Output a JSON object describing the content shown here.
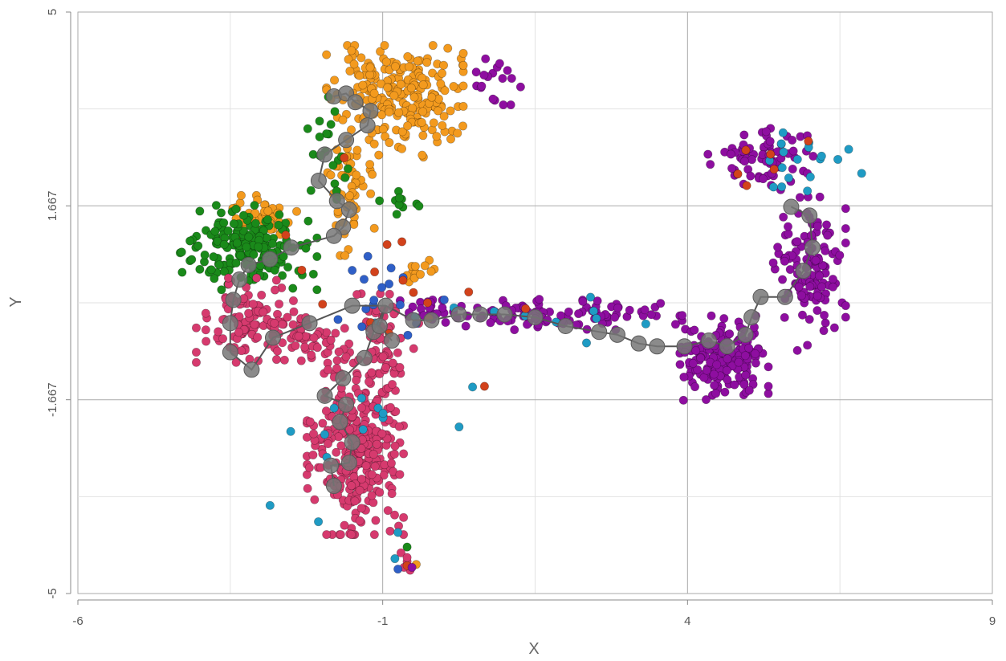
{
  "chart_data": {
    "type": "scatter",
    "title": "",
    "xlabel": "X",
    "ylabel": "Y",
    "xlim": [
      -6,
      9
    ],
    "ylim": [
      -5,
      5
    ],
    "x_ticks": [
      {
        "value": -6,
        "label": "-6"
      },
      {
        "value": -1,
        "label": "-1"
      },
      {
        "value": 4,
        "label": "4"
      },
      {
        "value": 9,
        "label": "9"
      }
    ],
    "y_ticks": [
      {
        "value": 5,
        "label": "5"
      },
      {
        "value": 1.667,
        "label": "1.667"
      },
      {
        "value": -1.667,
        "label": "-1.667"
      },
      {
        "value": -5,
        "label": "-5"
      }
    ],
    "grid": true,
    "legend": "none",
    "colors": {
      "orange": "#f39a1e",
      "green": "#1a8a1a",
      "pink": "#d63a6e",
      "purple": "#8e0ea0",
      "cyan": "#1f9bc4",
      "blue": "#2f5fc7",
      "red": "#d2421b",
      "trajectory": "#555555",
      "node": "#777777"
    },
    "clusters": [
      {
        "color": "orange",
        "cx": -0.8,
        "cy": 3.7,
        "rx": 0.85,
        "ry": 0.55,
        "n": 170,
        "seed": 11
      },
      {
        "color": "orange",
        "cx": -0.5,
        "cy": 3.1,
        "rx": 0.55,
        "ry": 0.45,
        "n": 50,
        "seed": 12
      },
      {
        "color": "orange",
        "cx": -1.6,
        "cy": 2.0,
        "rx": 0.35,
        "ry": 0.9,
        "n": 55,
        "seed": 13
      },
      {
        "color": "orange",
        "cx": -3.0,
        "cy": 1.45,
        "rx": 0.45,
        "ry": 0.3,
        "n": 45,
        "seed": 14
      },
      {
        "color": "orange",
        "cx": -0.4,
        "cy": 0.55,
        "rx": 0.2,
        "ry": 0.25,
        "n": 12,
        "seed": 15
      },
      {
        "color": "green",
        "cx": -3.2,
        "cy": 0.95,
        "rx": 0.85,
        "ry": 0.55,
        "n": 190,
        "seed": 21
      },
      {
        "color": "green",
        "cx": -1.9,
        "cy": 2.7,
        "rx": 0.25,
        "ry": 0.7,
        "n": 22,
        "seed": 22
      },
      {
        "color": "green",
        "cx": -0.8,
        "cy": 1.75,
        "rx": 0.3,
        "ry": 0.25,
        "n": 10,
        "seed": 23
      },
      {
        "color": "pink",
        "cx": -3.2,
        "cy": -0.3,
        "rx": 0.65,
        "ry": 0.55,
        "n": 110,
        "seed": 31
      },
      {
        "color": "pink",
        "cx": -1.45,
        "cy": -2.6,
        "rx": 0.6,
        "ry": 1.05,
        "n": 300,
        "seed": 32
      },
      {
        "color": "pink",
        "cx": -1.2,
        "cy": -0.9,
        "rx": 0.6,
        "ry": 0.8,
        "n": 90,
        "seed": 33
      },
      {
        "color": "pink",
        "cx": -2.3,
        "cy": -0.6,
        "rx": 0.5,
        "ry": 0.4,
        "n": 40,
        "seed": 34
      },
      {
        "color": "purple",
        "cx": 4.6,
        "cy": -0.95,
        "rx": 0.55,
        "ry": 0.55,
        "n": 190,
        "seed": 41
      },
      {
        "color": "purple",
        "cx": 1.8,
        "cy": -0.2,
        "rx": 1.6,
        "ry": 0.2,
        "n": 95,
        "seed": 42
      },
      {
        "color": "purple",
        "cx": 6.0,
        "cy": 0.5,
        "rx": 0.45,
        "ry": 1.0,
        "n": 130,
        "seed": 43
      },
      {
        "color": "purple",
        "cx": 5.2,
        "cy": 2.5,
        "rx": 0.75,
        "ry": 0.45,
        "n": 70,
        "seed": 44
      },
      {
        "color": "purple",
        "cx": 0.8,
        "cy": 3.8,
        "rx": 0.35,
        "ry": 0.3,
        "n": 18,
        "seed": 45
      },
      {
        "color": "purple",
        "cx": -0.2,
        "cy": -0.1,
        "rx": 0.4,
        "ry": 0.2,
        "n": 22,
        "seed": 46
      },
      {
        "color": "cyan",
        "cx": 5.8,
        "cy": 2.3,
        "rx": 0.8,
        "ry": 0.5,
        "n": 18,
        "seed": 51
      },
      {
        "color": "cyan",
        "cx": -1.0,
        "cy": -2.0,
        "rx": 1.4,
        "ry": 1.5,
        "n": 14,
        "seed": 52
      },
      {
        "color": "cyan",
        "cx": 1.5,
        "cy": -0.3,
        "rx": 1.5,
        "ry": 0.3,
        "n": 10,
        "seed": 53
      },
      {
        "color": "blue",
        "cx": -1.0,
        "cy": 0.0,
        "rx": 0.9,
        "ry": 1.0,
        "n": 16,
        "seed": 61
      },
      {
        "color": "red",
        "cx": -0.9,
        "cy": 0.7,
        "rx": 1.7,
        "ry": 2.0,
        "n": 16,
        "seed": 71
      },
      {
        "color": "red",
        "cx": 5.5,
        "cy": 2.5,
        "rx": 0.8,
        "ry": 0.4,
        "n": 6,
        "seed": 72
      }
    ],
    "tail_points": [
      {
        "color": "pink",
        "x": -0.7,
        "y": -4.3
      },
      {
        "color": "pink",
        "x": -0.6,
        "y": -4.45
      },
      {
        "color": "pink",
        "x": -0.55,
        "y": -4.6
      },
      {
        "color": "pink",
        "x": -0.65,
        "y": -4.55
      },
      {
        "color": "red",
        "x": -0.6,
        "y": -4.52
      },
      {
        "color": "orange",
        "x": -0.45,
        "y": -4.5
      },
      {
        "color": "green",
        "x": -0.6,
        "y": -4.2
      },
      {
        "color": "cyan",
        "x": -0.8,
        "y": -4.4
      },
      {
        "color": "cyan",
        "x": -0.75,
        "y": -3.95
      },
      {
        "color": "blue",
        "x": -0.75,
        "y": -4.58
      },
      {
        "color": "pink",
        "x": -0.6,
        "y": -4.38
      },
      {
        "color": "purple",
        "x": -0.52,
        "y": -4.55
      }
    ],
    "trajectory": [
      {
        "x": -1.8,
        "y": 3.55
      },
      {
        "x": -1.6,
        "y": 3.6
      },
      {
        "x": -1.45,
        "y": 3.45
      },
      {
        "x": -1.2,
        "y": 3.3
      },
      {
        "x": -1.25,
        "y": 3.05
      },
      {
        "x": -1.6,
        "y": 2.8
      },
      {
        "x": -1.95,
        "y": 2.55
      },
      {
        "x": -2.05,
        "y": 2.1
      },
      {
        "x": -1.75,
        "y": 1.75
      },
      {
        "x": -1.55,
        "y": 1.6
      },
      {
        "x": -1.65,
        "y": 1.3
      },
      {
        "x": -1.8,
        "y": 1.15
      },
      {
        "x": -2.5,
        "y": 0.95
      },
      {
        "x": -2.85,
        "y": 0.75
      },
      {
        "x": -3.2,
        "y": 0.65
      },
      {
        "x": -3.35,
        "y": 0.4
      },
      {
        "x": -3.45,
        "y": 0.05
      },
      {
        "x": -3.5,
        "y": -0.35
      },
      {
        "x": -3.5,
        "y": -0.85
      },
      {
        "x": -3.15,
        "y": -1.15
      },
      {
        "x": -2.8,
        "y": -0.6
      },
      {
        "x": -2.2,
        "y": -0.35
      },
      {
        "x": -1.5,
        "y": -0.05
      },
      {
        "x": -0.95,
        "y": -0.05
      },
      {
        "x": -0.5,
        "y": -0.3
      },
      {
        "x": -0.2,
        "y": -0.3
      },
      {
        "x": 0.25,
        "y": -0.2
      },
      {
        "x": 0.6,
        "y": -0.2
      },
      {
        "x": 1.0,
        "y": -0.2
      },
      {
        "x": 1.5,
        "y": -0.25
      },
      {
        "x": 2.0,
        "y": -0.4
      },
      {
        "x": 2.55,
        "y": -0.5
      },
      {
        "x": 2.85,
        "y": -0.55
      },
      {
        "x": 3.2,
        "y": -0.7
      },
      {
        "x": 3.5,
        "y": -0.75
      },
      {
        "x": 3.95,
        "y": -0.75
      },
      {
        "x": 4.35,
        "y": -0.65
      },
      {
        "x": 4.65,
        "y": -0.75
      },
      {
        "x": 4.95,
        "y": -0.55
      },
      {
        "x": 5.05,
        "y": -0.25
      },
      {
        "x": 5.2,
        "y": 0.1
      },
      {
        "x": 5.6,
        "y": 0.1
      },
      {
        "x": 5.9,
        "y": 0.55
      },
      {
        "x": 6.05,
        "y": 0.95
      },
      {
        "x": 6.0,
        "y": 1.5
      },
      {
        "x": 5.7,
        "y": 1.65
      }
    ],
    "trajectory_branches": [
      [
        {
          "x": -0.95,
          "y": -0.05
        },
        {
          "x": -1.15,
          "y": -0.5
        },
        {
          "x": -1.3,
          "y": -0.95
        },
        {
          "x": -1.65,
          "y": -1.3
        },
        {
          "x": -1.95,
          "y": -1.6
        },
        {
          "x": -1.6,
          "y": -1.75
        },
        {
          "x": -1.7,
          "y": -2.05
        },
        {
          "x": -1.5,
          "y": -2.4
        },
        {
          "x": -1.55,
          "y": -2.75
        },
        {
          "x": -1.85,
          "y": -2.8
        },
        {
          "x": -1.8,
          "y": -3.15
        }
      ],
      [
        {
          "x": -0.95,
          "y": -0.05
        },
        {
          "x": -1.05,
          "y": -0.4
        },
        {
          "x": -0.85,
          "y": -0.65
        }
      ]
    ]
  }
}
